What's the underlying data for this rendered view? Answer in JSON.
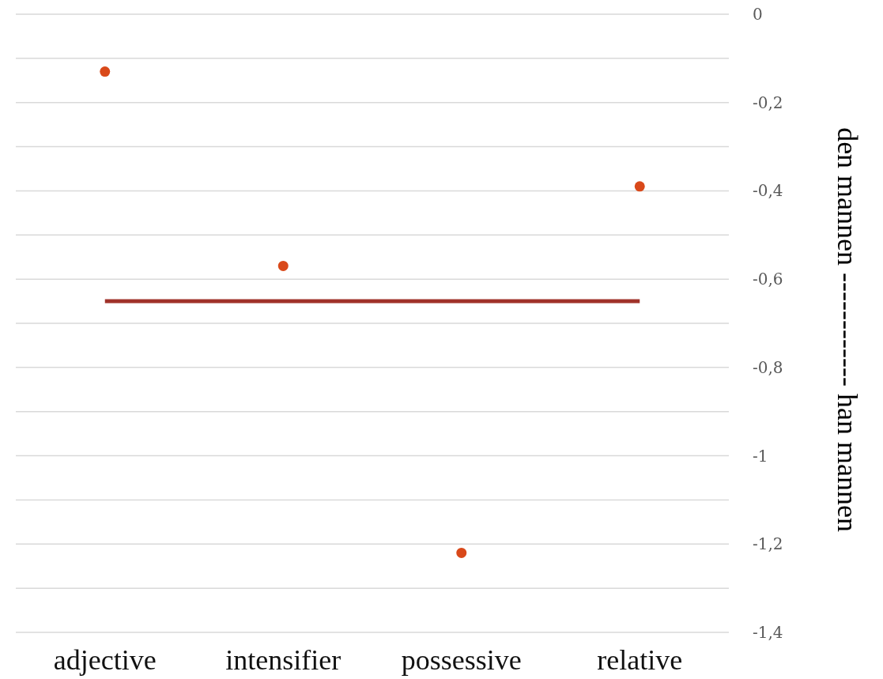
{
  "chart_data": {
    "type": "scatter",
    "ylabel": "den mannen ------------ han mannen",
    "categories": [
      "adjective",
      "intensifier",
      "possessive",
      "relative"
    ],
    "series": [
      {
        "marker": "circle",
        "color": "#d9491a",
        "values": [
          -0.13,
          -0.57,
          -1.22,
          -0.39
        ]
      },
      {
        "type": "line",
        "marker": "none",
        "color": "#a0322a",
        "values": [
          -0.65,
          -0.65,
          -0.65,
          -0.65
        ]
      }
    ],
    "ylim": [
      -1.4,
      0
    ],
    "yticks": [
      0,
      {
        "value": -0.1,
        "label": null
      },
      {
        "value": -0.2,
        "label": "-0,2"
      },
      {
        "value": -0.3,
        "label": null
      },
      {
        "value": -0.4,
        "label": "-0,4"
      },
      {
        "value": -0.5,
        "label": null
      },
      {
        "value": -0.6,
        "label": "-0,6"
      },
      {
        "value": -0.7,
        "label": null
      },
      {
        "value": -0.8,
        "label": "-0,8"
      },
      {
        "value": -0.9,
        "label": null
      },
      -1,
      {
        "value": -1.1,
        "label": null
      },
      {
        "value": -1.2,
        "label": "-1,2"
      },
      {
        "value": -1.3,
        "label": null
      },
      {
        "value": -1.4,
        "label": "-1,4"
      }
    ],
    "grid": "y"
  }
}
